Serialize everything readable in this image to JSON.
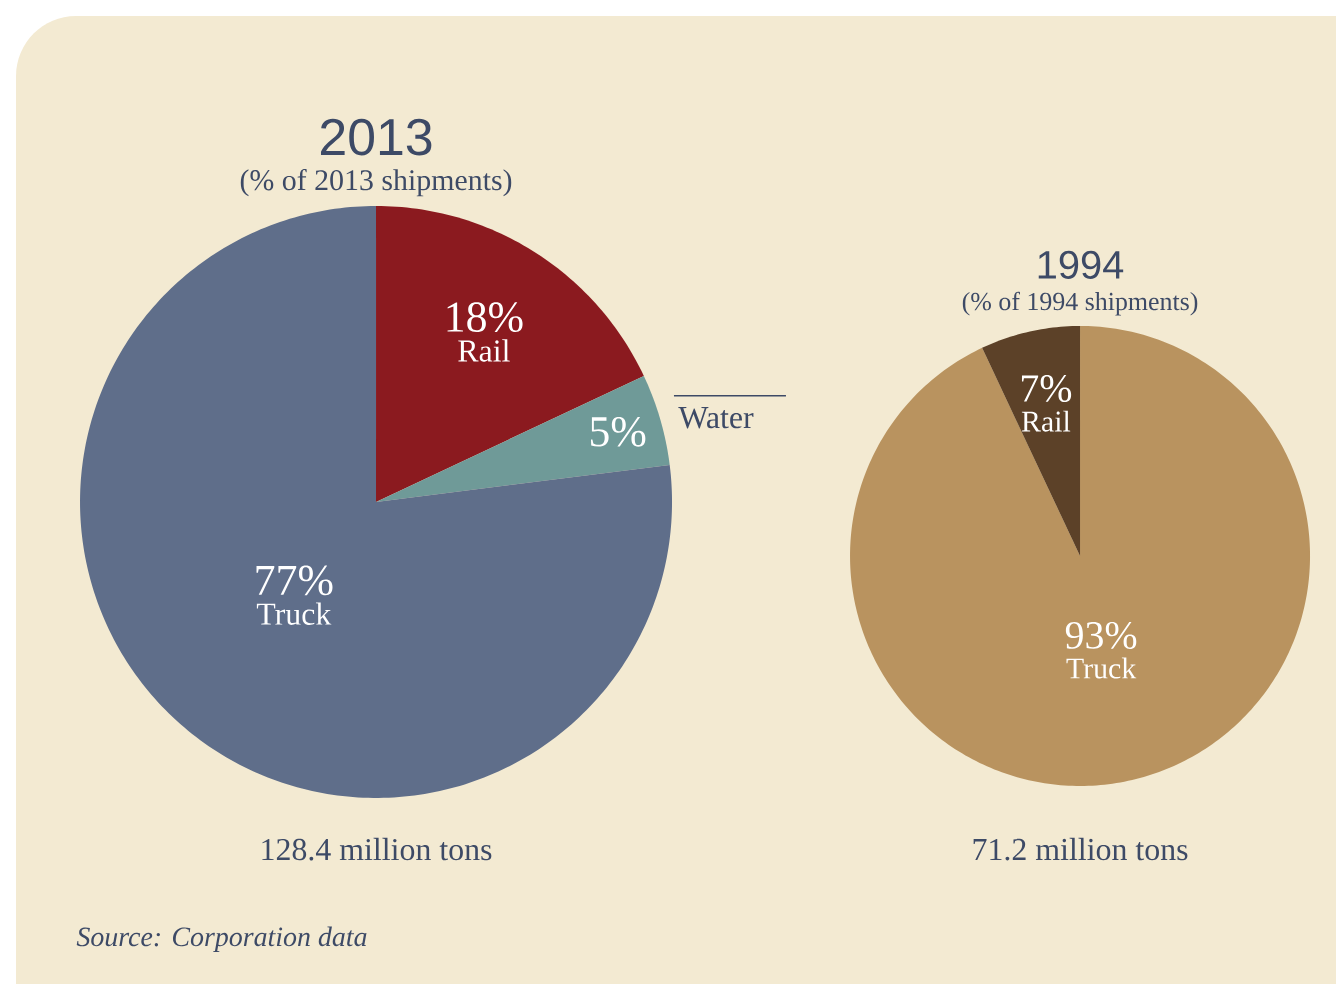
{
  "chart_data": [
    {
      "type": "pie",
      "title": "2013",
      "subtitle": "(% of 2013 shipments)",
      "categories": [
        "Rail",
        "Water",
        "Truck"
      ],
      "values": [
        18,
        5,
        77
      ],
      "colors": [
        "#8b1a1f",
        "#6f9a98",
        "#5f6e8a"
      ],
      "value_labels": [
        "18%",
        "5%",
        "77%"
      ],
      "annotations": [
        "128.4 million tons",
        "Source: Corporation data"
      ]
    },
    {
      "type": "pie",
      "title": "1994",
      "subtitle": "(% of 1994 shipments)",
      "categories": [
        "Truck",
        "Rail"
      ],
      "values": [
        93,
        7
      ],
      "colors": [
        "#b9935f",
        "#5c4128"
      ],
      "value_labels": [
        "93%",
        "7%"
      ],
      "annotations": [
        "71.2 million tons"
      ]
    }
  ]
}
